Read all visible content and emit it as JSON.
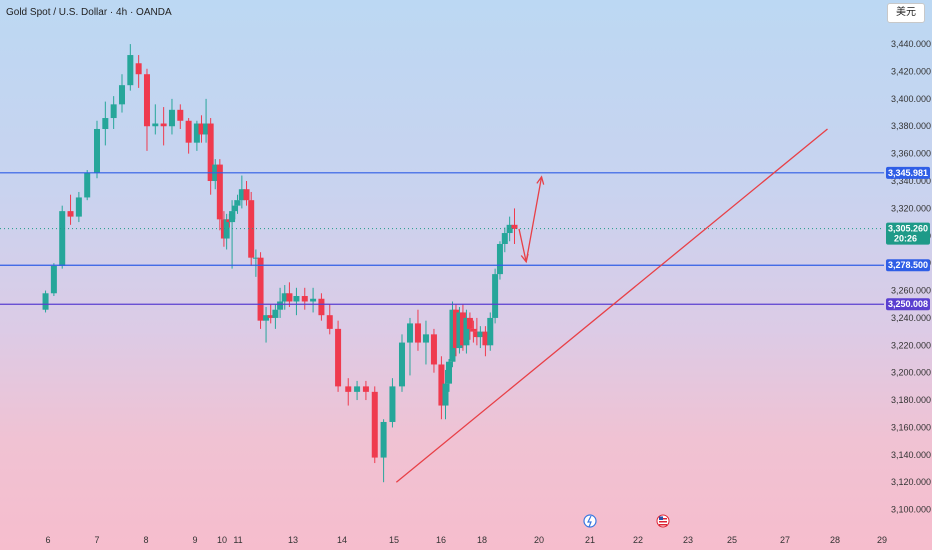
{
  "header": {
    "title": "Gold Spot / U.S. Dollar · 4h · OANDA",
    "currency_button": "美元"
  },
  "colors": {
    "up": "#26a69a",
    "down": "#ef3a4e",
    "level_line": "#2f5ee6",
    "level_line_purple": "#5a3fd0",
    "trend": "#e84047",
    "current_price_bg": "#1e9a88"
  },
  "chart_data": {
    "type": "candlestick",
    "symbol": "XAUUSD",
    "interval": "4h",
    "ylim": [
      3100,
      3460
    ],
    "x_days": [
      6,
      29
    ],
    "y_ticks": [
      "3,100.000",
      "3,120.000",
      "3,140.000",
      "3,160.000",
      "3,180.000",
      "3,200.000",
      "3,220.000",
      "3,240.000",
      "3,260.000",
      "3,280.000",
      "3,300.000",
      "3,320.000",
      "3,340.000",
      "3,360.000",
      "3,380.000",
      "3,400.000",
      "3,420.000",
      "3,440.000"
    ],
    "x_ticks": [
      {
        "label": "6",
        "day": 6
      },
      {
        "label": "7",
        "day": 7
      },
      {
        "label": "8",
        "day": 8
      },
      {
        "label": "9",
        "day": 9
      },
      {
        "label": "10",
        "day": 10
      },
      {
        "label": "11",
        "day": 11
      },
      {
        "label": "13",
        "day": 13
      },
      {
        "label": "14",
        "day": 14
      },
      {
        "label": "15",
        "day": 15
      },
      {
        "label": "16",
        "day": 16
      },
      {
        "label": "18",
        "day": 18
      },
      {
        "label": "20",
        "day": 20
      },
      {
        "label": "21",
        "day": 21
      },
      {
        "label": "22",
        "day": 22
      },
      {
        "label": "23",
        "day": 23
      },
      {
        "label": "25",
        "day": 25
      },
      {
        "label": "27",
        "day": 27
      },
      {
        "label": "28",
        "day": 28
      },
      {
        "label": "29",
        "day": 29
      }
    ],
    "candles": [
      {
        "d": 5.95,
        "o": 3246,
        "h": 3260,
        "l": 3244,
        "c": 3258
      },
      {
        "d": 6.12,
        "o": 3258,
        "h": 3280,
        "l": 3256,
        "c": 3278
      },
      {
        "d": 6.29,
        "o": 3278,
        "h": 3322,
        "l": 3276,
        "c": 3318
      },
      {
        "d": 6.46,
        "o": 3318,
        "h": 3330,
        "l": 3308,
        "c": 3314
      },
      {
        "d": 6.63,
        "o": 3314,
        "h": 3332,
        "l": 3310,
        "c": 3328
      },
      {
        "d": 6.8,
        "o": 3328,
        "h": 3348,
        "l": 3326,
        "c": 3346
      },
      {
        "d": 7.0,
        "o": 3346,
        "h": 3384,
        "l": 3342,
        "c": 3378
      },
      {
        "d": 7.17,
        "o": 3378,
        "h": 3398,
        "l": 3366,
        "c": 3386
      },
      {
        "d": 7.34,
        "o": 3386,
        "h": 3402,
        "l": 3378,
        "c": 3396
      },
      {
        "d": 7.51,
        "o": 3396,
        "h": 3418,
        "l": 3390,
        "c": 3410
      },
      {
        "d": 7.68,
        "o": 3410,
        "h": 3440,
        "l": 3406,
        "c": 3432
      },
      {
        "d": 7.85,
        "o": 3426,
        "h": 3432,
        "l": 3408,
        "c": 3418
      },
      {
        "d": 8.02,
        "o": 3418,
        "h": 3422,
        "l": 3362,
        "c": 3380
      },
      {
        "d": 8.19,
        "o": 3380,
        "h": 3396,
        "l": 3374,
        "c": 3382
      },
      {
        "d": 8.36,
        "o": 3382,
        "h": 3394,
        "l": 3366,
        "c": 3380
      },
      {
        "d": 8.53,
        "o": 3380,
        "h": 3400,
        "l": 3374,
        "c": 3392
      },
      {
        "d": 8.7,
        "o": 3392,
        "h": 3396,
        "l": 3378,
        "c": 3384
      },
      {
        "d": 8.87,
        "o": 3384,
        "h": 3386,
        "l": 3360,
        "c": 3368
      },
      {
        "d": 9.07,
        "o": 3368,
        "h": 3384,
        "l": 3362,
        "c": 3382
      },
      {
        "d": 9.24,
        "o": 3382,
        "h": 3388,
        "l": 3368,
        "c": 3374
      },
      {
        "d": 9.41,
        "o": 3374,
        "h": 3400,
        "l": 3368,
        "c": 3382
      },
      {
        "d": 9.58,
        "o": 3382,
        "h": 3386,
        "l": 3330,
        "c": 3340
      },
      {
        "d": 9.75,
        "o": 3340,
        "h": 3356,
        "l": 3334,
        "c": 3352
      },
      {
        "d": 9.92,
        "o": 3352,
        "h": 3356,
        "l": 3304,
        "c": 3312
      },
      {
        "d": 10.12,
        "o": 3312,
        "h": 3318,
        "l": 3292,
        "c": 3298
      },
      {
        "d": 10.29,
        "o": 3298,
        "h": 3316,
        "l": 3290,
        "c": 3312
      },
      {
        "d": 10.46,
        "o": 3312,
        "h": 3316,
        "l": 3306,
        "c": 3310
      },
      {
        "d": 10.63,
        "o": 3310,
        "h": 3326,
        "l": 3276,
        "c": 3318
      },
      {
        "d": 10.8,
        "o": 3318,
        "h": 3326,
        "l": 3312,
        "c": 3322
      },
      {
        "d": 10.97,
        "o": 3322,
        "h": 3330,
        "l": 3316,
        "c": 3326
      },
      {
        "d": 11.14,
        "o": 3326,
        "h": 3344,
        "l": 3320,
        "c": 3334
      },
      {
        "d": 11.31,
        "o": 3334,
        "h": 3340,
        "l": 3322,
        "c": 3326
      },
      {
        "d": 11.48,
        "o": 3326,
        "h": 3332,
        "l": 3278,
        "c": 3284
      },
      {
        "d": 11.65,
        "o": 3284,
        "h": 3290,
        "l": 3270,
        "c": 3284
      },
      {
        "d": 11.82,
        "o": 3284,
        "h": 3288,
        "l": 3232,
        "c": 3238
      },
      {
        "d": 12.02,
        "o": 3238,
        "h": 3248,
        "l": 3222,
        "c": 3242
      },
      {
        "d": 12.19,
        "o": 3242,
        "h": 3250,
        "l": 3236,
        "c": 3240
      },
      {
        "d": 12.36,
        "o": 3240,
        "h": 3250,
        "l": 3232,
        "c": 3246
      },
      {
        "d": 12.53,
        "o": 3246,
        "h": 3262,
        "l": 3240,
        "c": 3252
      },
      {
        "d": 12.7,
        "o": 3252,
        "h": 3264,
        "l": 3246,
        "c": 3258
      },
      {
        "d": 12.87,
        "o": 3258,
        "h": 3266,
        "l": 3248,
        "c": 3252
      },
      {
        "d": 13.07,
        "o": 3252,
        "h": 3262,
        "l": 3242,
        "c": 3256
      },
      {
        "d": 13.24,
        "o": 3256,
        "h": 3262,
        "l": 3246,
        "c": 3252
      },
      {
        "d": 13.41,
        "o": 3252,
        "h": 3262,
        "l": 3244,
        "c": 3254
      },
      {
        "d": 13.58,
        "o": 3254,
        "h": 3258,
        "l": 3238,
        "c": 3242
      },
      {
        "d": 13.75,
        "o": 3242,
        "h": 3250,
        "l": 3228,
        "c": 3232
      },
      {
        "d": 13.92,
        "o": 3232,
        "h": 3238,
        "l": 3186,
        "c": 3190
      },
      {
        "d": 14.12,
        "o": 3190,
        "h": 3196,
        "l": 3176,
        "c": 3186
      },
      {
        "d": 14.29,
        "o": 3186,
        "h": 3194,
        "l": 3180,
        "c": 3190
      },
      {
        "d": 14.46,
        "o": 3190,
        "h": 3194,
        "l": 3180,
        "c": 3186
      },
      {
        "d": 14.63,
        "o": 3186,
        "h": 3190,
        "l": 3134,
        "c": 3138
      },
      {
        "d": 14.8,
        "o": 3138,
        "h": 3166,
        "l": 3120,
        "c": 3164
      },
      {
        "d": 14.97,
        "o": 3164,
        "h": 3196,
        "l": 3160,
        "c": 3190
      },
      {
        "d": 15.17,
        "o": 3190,
        "h": 3228,
        "l": 3186,
        "c": 3222
      },
      {
        "d": 15.34,
        "o": 3222,
        "h": 3240,
        "l": 3198,
        "c": 3236
      },
      {
        "d": 15.51,
        "o": 3236,
        "h": 3246,
        "l": 3216,
        "c": 3222
      },
      {
        "d": 15.68,
        "o": 3222,
        "h": 3238,
        "l": 3206,
        "c": 3228
      },
      {
        "d": 15.85,
        "o": 3228,
        "h": 3232,
        "l": 3200,
        "c": 3206
      },
      {
        "d": 16.02,
        "o": 3206,
        "h": 3212,
        "l": 3166,
        "c": 3176
      },
      {
        "d": 16.22,
        "o": 3176,
        "h": 3202,
        "l": 3166,
        "c": 3192
      },
      {
        "d": 16.39,
        "o": 3192,
        "h": 3210,
        "l": 3186,
        "c": 3208
      },
      {
        "d": 16.56,
        "o": 3208,
        "h": 3252,
        "l": 3204,
        "c": 3246
      },
      {
        "d": 16.73,
        "o": 3246,
        "h": 3250,
        "l": 3212,
        "c": 3218
      },
      {
        "d": 16.9,
        "o": 3218,
        "h": 3248,
        "l": 3214,
        "c": 3244
      },
      {
        "d": 17.07,
        "o": 3244,
        "h": 3250,
        "l": 3216,
        "c": 3220
      },
      {
        "d": 17.24,
        "o": 3220,
        "h": 3246,
        "l": 3214,
        "c": 3240
      },
      {
        "d": 17.41,
        "o": 3240,
        "h": 3244,
        "l": 3224,
        "c": 3232
      },
      {
        "d": 17.58,
        "o": 3232,
        "h": 3238,
        "l": 3222,
        "c": 3230
      },
      {
        "d": 17.75,
        "o": 3230,
        "h": 3240,
        "l": 3220,
        "c": 3226
      },
      {
        "d": 17.92,
        "o": 3226,
        "h": 3234,
        "l": 3218,
        "c": 3230
      },
      {
        "d": 18.12,
        "o": 3230,
        "h": 3234,
        "l": 3212,
        "c": 3220
      },
      {
        "d": 18.29,
        "o": 3220,
        "h": 3244,
        "l": 3216,
        "c": 3240
      },
      {
        "d": 18.46,
        "o": 3240,
        "h": 3276,
        "l": 3236,
        "c": 3272
      },
      {
        "d": 18.63,
        "o": 3272,
        "h": 3296,
        "l": 3268,
        "c": 3294
      },
      {
        "d": 18.8,
        "o": 3294,
        "h": 3306,
        "l": 3288,
        "c": 3302
      },
      {
        "d": 18.97,
        "o": 3302,
        "h": 3314,
        "l": 3296,
        "c": 3308
      },
      {
        "d": 19.14,
        "o": 3308,
        "h": 3320,
        "l": 3294,
        "c": 3305
      }
    ],
    "levels": [
      {
        "value": 3345.981,
        "label": "3,345.981",
        "color": "#2f5ee6"
      },
      {
        "value": 3278.5,
        "label": "3,278.500",
        "color": "#2f5ee6"
      },
      {
        "value": 3250.008,
        "label": "3,250.008",
        "color": "#5a3fd0"
      }
    ],
    "current_price": {
      "value": 3305.26,
      "label": "3,305.260",
      "countdown": "20:26"
    },
    "trendline": {
      "start": {
        "day": 15.05,
        "price": 3120
      },
      "end": {
        "day": 27.85,
        "price": 3378
      }
    },
    "projection_path": [
      {
        "day": 19.3,
        "price": 3305
      },
      {
        "day": 19.55,
        "price": 3281
      },
      {
        "day": 20.05,
        "price": 3343
      }
    ],
    "events": [
      {
        "name": "flash-event",
        "day": 21
      },
      {
        "name": "us-flag-event",
        "day": 22.5
      }
    ]
  }
}
